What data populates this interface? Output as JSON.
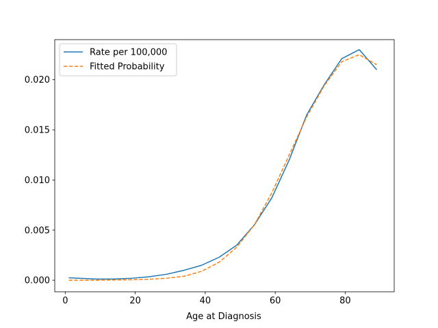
{
  "chart_data": {
    "type": "line",
    "xlabel": "Age at Diagnosis",
    "ylabel": "",
    "title": "",
    "xlim": [
      -3,
      94
    ],
    "ylim": [
      -0.00115,
      0.024
    ],
    "x_ticks": [
      0,
      20,
      40,
      60,
      80
    ],
    "x_tick_labels": [
      "0",
      "20",
      "40",
      "60",
      "80"
    ],
    "y_ticks": [
      0.0,
      0.005,
      0.01,
      0.015,
      0.02
    ],
    "y_tick_labels": [
      "0.000",
      "0.005",
      "0.010",
      "0.015",
      "0.020"
    ],
    "grid": false,
    "legend_position": "upper-left",
    "x": [
      1,
      4,
      9,
      14,
      19,
      24,
      29,
      34,
      39,
      44,
      49,
      54,
      59,
      64,
      69,
      74,
      79,
      84,
      89
    ],
    "series": [
      {
        "name": "Rate per 100,000",
        "style": "solid",
        "color": "#1f77b4",
        "values": [
          0.00025,
          0.0002,
          0.00012,
          0.00013,
          0.0002,
          0.00035,
          0.0006,
          0.001,
          0.0015,
          0.0023,
          0.0035,
          0.0055,
          0.0082,
          0.012,
          0.0165,
          0.0195,
          0.0221,
          0.023,
          0.021
        ]
      },
      {
        "name": "Fitted Probability",
        "style": "dashed",
        "color": "#ff7f0e",
        "values": [
          0.0,
          0.0,
          0.0,
          3e-05,
          5e-05,
          0.0001,
          0.0002,
          0.0004,
          0.0009,
          0.0018,
          0.0033,
          0.0055,
          0.0087,
          0.0125,
          0.0163,
          0.0194,
          0.0218,
          0.0225,
          0.0215
        ]
      }
    ]
  }
}
